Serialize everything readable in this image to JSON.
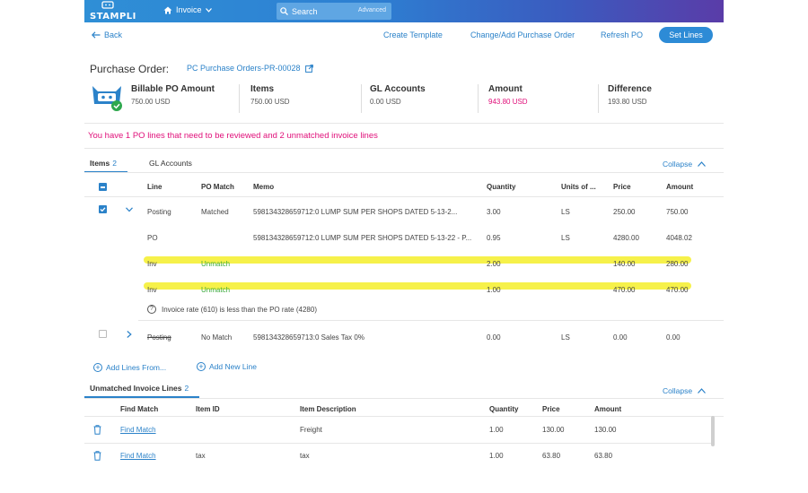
{
  "topbar": {
    "logo_text": "STAMPLI",
    "nav_label": "Invoice",
    "search_label": "Search",
    "advanced_label": "Advanced"
  },
  "actions": {
    "back": "Back",
    "create_template": "Create Template",
    "change_po": "Change/Add Purchase Order",
    "refresh_po": "Refresh PO",
    "set_lines": "Set Lines"
  },
  "po": {
    "title": "Purchase Order:",
    "link": "PC Purchase Orders-PR-00028"
  },
  "summary": {
    "billable_label": "Billable PO Amount",
    "billable_value": "750.00 USD",
    "items_label": "Items",
    "items_value": "750.00 USD",
    "gl_label": "GL Accounts",
    "gl_value": "0.00 USD",
    "amount_label": "Amount",
    "amount_value": "943.80 USD",
    "difference_label": "Difference",
    "difference_value": "193.80 USD"
  },
  "warning": "You have 1 PO lines that need to be reviewed and 2 unmatched invoice lines",
  "tabs": {
    "items_label": "Items",
    "items_count": "2",
    "gl_label": "GL Accounts",
    "collapse": "Collapse"
  },
  "items_table": {
    "headers": [
      "Line",
      "PO Match",
      "Memo",
      "Quantity",
      "Units of ...",
      "Price",
      "Amount"
    ],
    "rows": [
      {
        "line": "Posting",
        "match": "Matched",
        "memo": "598134328659712:0 LUMP SUM PER SHOPS DATED 5-13-2...",
        "qty": "3.00",
        "units": "LS",
        "price": "250.00",
        "amount": "750.00"
      },
      {
        "line": "PO",
        "match": "",
        "memo": "598134328659712:0 LUMP SUM PER SHOPS DATED 5-13-22 - P...",
        "qty": "0.95",
        "units": "LS",
        "price": "4280.00",
        "amount": "4048.02"
      },
      {
        "line": "Inv",
        "match": "Unmatch",
        "memo": "",
        "qty": "2.00",
        "units": "",
        "price": "140.00",
        "amount": "280.00"
      },
      {
        "line": "Inv",
        "match": "Unmatch",
        "memo": "",
        "qty": "1.00",
        "units": "",
        "price": "470.00",
        "amount": "470.00"
      },
      {
        "line": "Posting",
        "match": "No Match",
        "memo": "598134328659713:0 Sales Tax 0%",
        "qty": "0.00",
        "units": "LS",
        "price": "0.00",
        "amount": "0.00"
      }
    ],
    "note": "Invoice rate (610) is less than the PO rate (4280)"
  },
  "add_links": {
    "add_from": "Add Lines From...",
    "add_new": "Add New Line"
  },
  "unmatched": {
    "title": "Unmatched Invoice Lines",
    "count": "2",
    "collapse": "Collapse",
    "headers": [
      "Find Match",
      "Item ID",
      "Item Description",
      "Quantity",
      "Price",
      "Amount"
    ],
    "rows": [
      {
        "find": "Find Match",
        "item_id": "",
        "desc": "Freight",
        "qty": "1.00",
        "price": "130.00",
        "amount": "130.00"
      },
      {
        "find": "Find Match",
        "item_id": "tax",
        "desc": "tax",
        "qty": "1.00",
        "price": "63.80",
        "amount": "63.80"
      }
    ]
  },
  "colors": {
    "accent": "#2b82c9",
    "warning": "#e0107a",
    "match_green": "#3cab3c",
    "highlight": "#f4ee2a"
  }
}
